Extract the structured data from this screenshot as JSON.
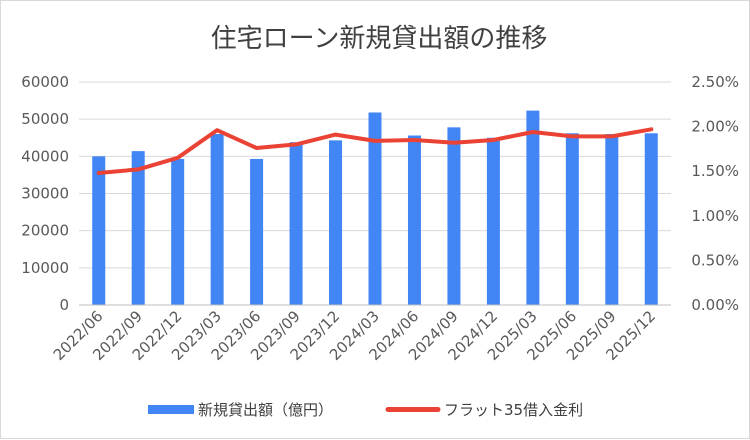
{
  "chart_data": {
    "type": "bar",
    "title": "住宅ローン新規貸出額の推移",
    "categories": [
      "2022/06",
      "2022/09",
      "2022/12",
      "2023/03",
      "2023/06",
      "2023/09",
      "2023/12",
      "2024/03",
      "2024/06",
      "2024/09",
      "2024/12",
      "2025/03",
      "2025/06",
      "2025/09",
      "2025/12"
    ],
    "series": [
      {
        "name": "新規貸出額（億円）",
        "type": "bar",
        "axis": "left",
        "color": "#4285f4",
        "values": [
          40000,
          41400,
          39300,
          46000,
          39300,
          43800,
          44300,
          51800,
          45600,
          47800,
          45000,
          52300,
          46200,
          46000,
          46200
        ]
      },
      {
        "name": "フラット35借入金利",
        "type": "line",
        "axis": "right",
        "color": "#ea4335",
        "values": [
          1.48,
          1.52,
          1.65,
          1.96,
          1.76,
          1.8,
          1.91,
          1.84,
          1.85,
          1.82,
          1.85,
          1.94,
          1.89,
          1.89,
          1.97
        ]
      }
    ],
    "y_left": {
      "min": 0,
      "max": 60000,
      "ticks": [
        "0",
        "10000",
        "20000",
        "30000",
        "40000",
        "50000",
        "60000"
      ]
    },
    "y_right": {
      "min": 0,
      "max": 2.5,
      "ticks": [
        "0.00%",
        "0.50%",
        "1.00%",
        "1.50%",
        "2.00%",
        "2.50%"
      ]
    },
    "grid": true,
    "legend": "bottom"
  }
}
